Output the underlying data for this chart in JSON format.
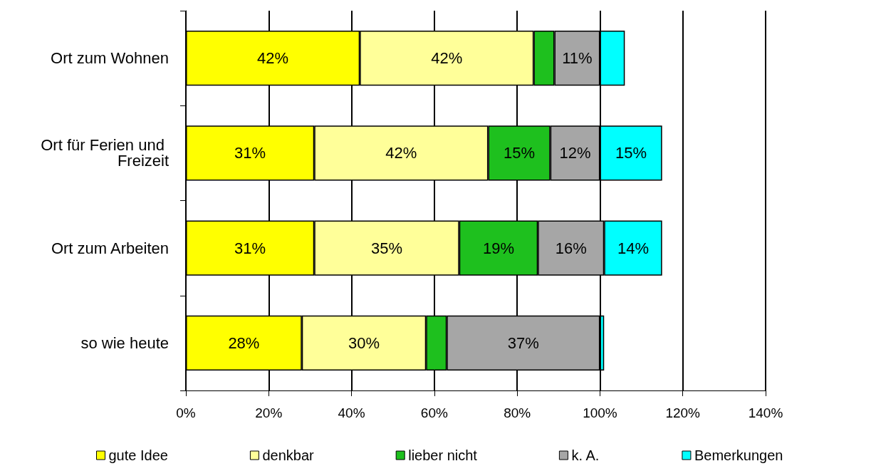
{
  "chart_data": {
    "type": "bar",
    "orientation": "horizontal",
    "stacked": true,
    "categories": [
      "Ort zum Wohnen",
      "Ort für Ferien und Freizeit",
      "Ort zum Arbeiten",
      "so wie heute"
    ],
    "series": [
      {
        "name": "gute Idee",
        "color": "#ffff00",
        "values": [
          42,
          31,
          31,
          28
        ],
        "value_labels": [
          "42%",
          "31%",
          "31%",
          "28%"
        ]
      },
      {
        "name": "denkbar",
        "color": "#ffff99",
        "values": [
          42,
          42,
          35,
          30
        ],
        "value_labels": [
          "42%",
          "42%",
          "35%",
          "30%"
        ]
      },
      {
        "name": "lieber nicht",
        "color": "#1ec01e",
        "values": [
          5,
          15,
          19,
          5
        ],
        "value_labels": [
          null,
          "15%",
          "19%",
          null
        ]
      },
      {
        "name": "k. A.",
        "color": "#a6a6a6",
        "values": [
          11,
          12,
          16,
          37
        ],
        "value_labels": [
          "11%",
          "12%",
          "16%",
          "37%"
        ]
      },
      {
        "name": "Bemerkungen",
        "color": "#00ffff",
        "values": [
          6,
          15,
          14,
          1
        ],
        "value_labels": [
          null,
          "15%",
          "14%",
          null
        ]
      }
    ],
    "xlim": [
      0,
      140
    ],
    "xticks": [
      {
        "value": 0,
        "label": "0%"
      },
      {
        "value": 20,
        "label": "20%"
      },
      {
        "value": 40,
        "label": "40%"
      },
      {
        "value": 60,
        "label": "60%"
      },
      {
        "value": 80,
        "label": "80%"
      },
      {
        "value": 100,
        "label": "100%"
      },
      {
        "value": 120,
        "label": "120%"
      },
      {
        "value": 140,
        "label": "140%"
      }
    ],
    "grid": "x",
    "legend": "bottom"
  }
}
